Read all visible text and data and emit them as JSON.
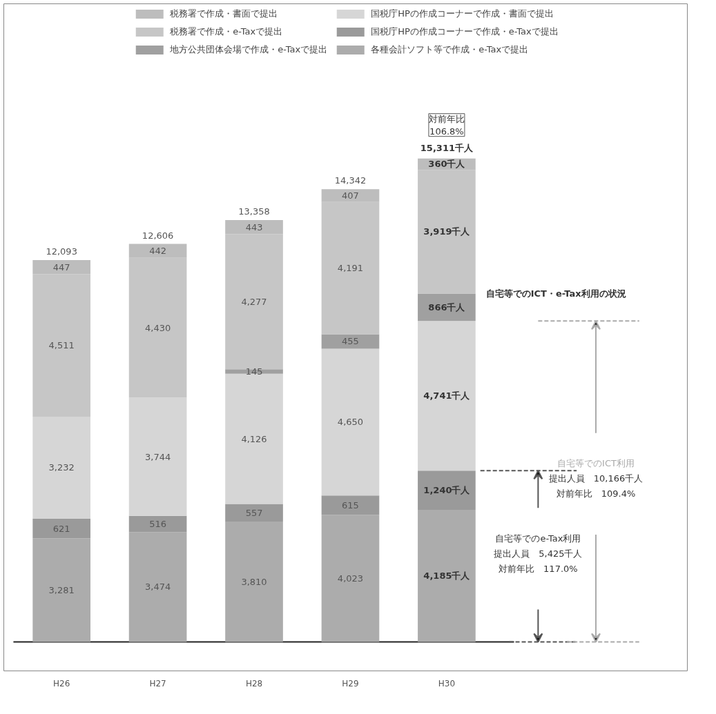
{
  "chart_data": {
    "type": "bar",
    "stacked": true,
    "categories": [
      "H26",
      "H27",
      "H28",
      "H29",
      "H30"
    ],
    "series": [
      {
        "name": "各種会計ソフト等で作成・e-Taxで提出",
        "color": "#acacac",
        "values": [
          3281,
          3474,
          3810,
          4023,
          4185
        ],
        "value_labels": [
          "3,281",
          "3,474",
          "3,810",
          "4,023",
          "4,185千人"
        ]
      },
      {
        "name": "国税庁HPの作成コーナーで作成・e-Taxで提出",
        "color": "#9a9a9a",
        "values": [
          621,
          516,
          557,
          615,
          1240
        ],
        "value_labels": [
          "621",
          "516",
          "557",
          "615",
          "1,240千人"
        ]
      },
      {
        "name": "国税庁HPの作成コーナーで作成・書面で提出",
        "color": "#d6d6d6",
        "values": [
          3232,
          3744,
          4126,
          4650,
          4741
        ],
        "value_labels": [
          "3,232",
          "3,744",
          "4,126",
          "4,650",
          "4,741千人"
        ]
      },
      {
        "name": "地方公共団体会場で作成・e-Taxで提出",
        "color": "#a0a0a0",
        "values": [
          null,
          null,
          145,
          455,
          866
        ],
        "value_labels": [
          null,
          null,
          "145",
          "455",
          "866千人"
        ]
      },
      {
        "name": "税務署で作成・e-Taxで提出",
        "color": "#c6c6c6",
        "values": [
          4511,
          4430,
          4277,
          4191,
          3919
        ],
        "value_labels": [
          "4,511",
          "4,430",
          "4,277",
          "4,191",
          "3,919千人"
        ]
      },
      {
        "name": "税務署で作成・書面で提出",
        "color": "#bdbdbd",
        "values": [
          447,
          442,
          443,
          407,
          360
        ],
        "value_labels": [
          "447",
          "442",
          "443",
          "407",
          "360千人"
        ]
      }
    ],
    "totals": [
      "12,093",
      "12,606",
      "13,358",
      "14,342",
      "15,311千人"
    ],
    "legend": "top",
    "grid": false,
    "annotations": [
      "対前年比\n106.8%",
      "自宅等でのICT・e-Tax利用の状況",
      "自宅等でのICT利用",
      "提出人員　10,166千人",
      "対前年比　109.4%",
      "自宅等でのe-Tax利用",
      "提出人員　5,425千人",
      "対前年比　117.0%"
    ]
  }
}
